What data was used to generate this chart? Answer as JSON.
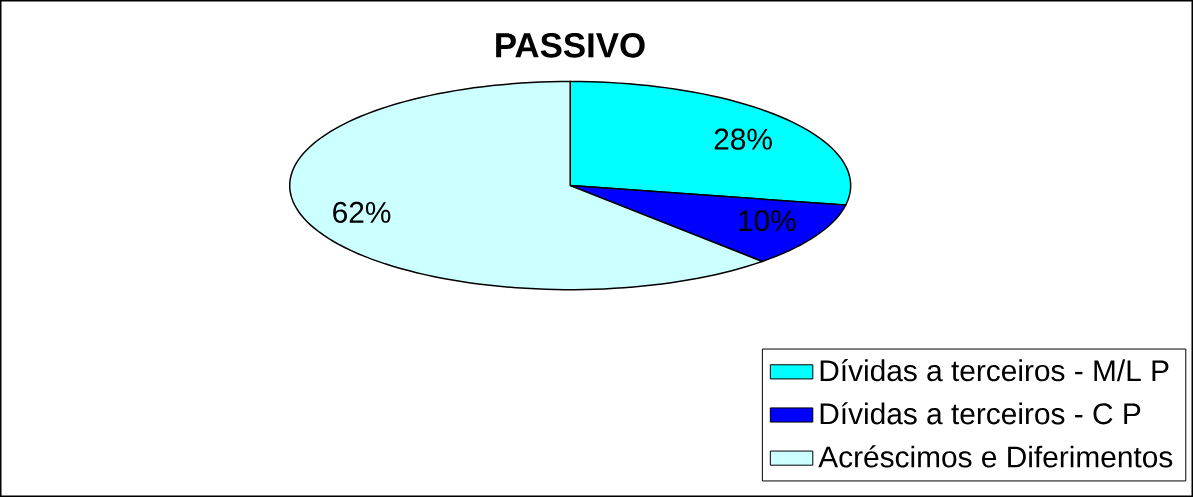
{
  "chart_data": {
    "type": "pie",
    "title": "PASSIVO",
    "categories": [
      "Dívidas a terceiros - M/L P",
      "Dívidas a terceiros - C P",
      "Acréscimos e Diferimentos"
    ],
    "values": [
      28,
      10,
      62
    ],
    "colors": [
      "#00ffff",
      "#0000ff",
      "#ccffff"
    ],
    "value_labels": [
      "28%",
      "10%",
      "62%"
    ],
    "legend": "bottom right"
  }
}
